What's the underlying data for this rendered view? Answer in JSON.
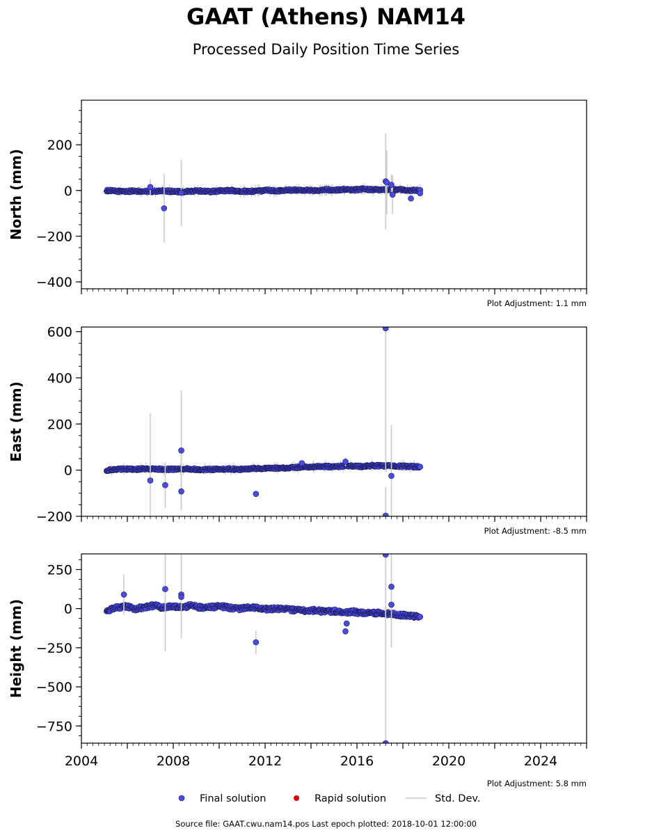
{
  "header": {
    "title": "GAAT (Athens) NAM14",
    "subtitle": "Processed Daily Position Time Series"
  },
  "colors": {
    "final_solution": "#4a4ae6",
    "final_edge": "#1a1a55",
    "rapid_solution": "#e00000",
    "std_dev": "#cccccc"
  },
  "legend": {
    "final": "Final solution",
    "rapid": "Rapid solution",
    "std": "Std. Dev."
  },
  "footer": {
    "source": "Source file: GAAT.cwu.nam14.pos  Last epoch plotted: 2018-10-01 12:00:00"
  },
  "chart_data": [
    {
      "type": "scatter",
      "panel": "north",
      "ylabel": "North (mm)",
      "ylim": [
        -430,
        395
      ],
      "yticks": [
        200,
        0,
        -200,
        -400
      ],
      "ytick_labels": [
        "200",
        "0",
        "−200",
        "−400"
      ],
      "xlim": [
        2004.0,
        2026.0
      ],
      "plot_adjustment": "Plot Adjustment: 1.1 mm",
      "series": [
        {
          "x_start": 2005.1,
          "x_end": 2018.75,
          "values": [
            0,
            -3,
            -4,
            -2,
            -5,
            -3,
            -1,
            -4,
            -6,
            -3,
            -2,
            -5,
            -1,
            0,
            -3,
            -4,
            -2,
            1,
            -1,
            2,
            3,
            1,
            0,
            4,
            2,
            5,
            3,
            6,
            4,
            2,
            5,
            3,
            1,
            0
          ]
        }
      ],
      "outliers": [
        {
          "x": 2007.6,
          "y": -78,
          "err": 150
        },
        {
          "x": 2008.35,
          "y": -10,
          "err": 145
        },
        {
          "x": 2007.0,
          "y": 15,
          "err": 35
        },
        {
          "x": 2017.25,
          "y": 40,
          "err": 210
        },
        {
          "x": 2017.3,
          "y": 35,
          "err": 140
        },
        {
          "x": 2017.5,
          "y": 25,
          "err": 45
        },
        {
          "x": 2017.55,
          "y": -18,
          "err": 85
        },
        {
          "x": 2018.35,
          "y": -35,
          "err": 0
        },
        {
          "x": 2018.75,
          "y": -12,
          "err": 0
        }
      ]
    },
    {
      "type": "scatter",
      "panel": "east",
      "ylabel": "East (mm)",
      "ylim": [
        -200,
        620
      ],
      "yticks": [
        600,
        400,
        200,
        0,
        -200
      ],
      "ytick_labels": [
        "600",
        "400",
        "200",
        "0",
        "−200"
      ],
      "xlim": [
        2004.0,
        2026.0
      ],
      "plot_adjustment": "Plot Adjustment: -8.5 mm",
      "series": [
        {
          "x_start": 2005.1,
          "x_end": 2018.75,
          "values": [
            0,
            3,
            5,
            4,
            6,
            5,
            3,
            4,
            6,
            5,
            2,
            3,
            4,
            5,
            3,
            6,
            8,
            7,
            9,
            10,
            12,
            13,
            15,
            16,
            15,
            18,
            17,
            16,
            20,
            19,
            18,
            17,
            16,
            14
          ]
        }
      ],
      "outliers": [
        {
          "x": 2007.0,
          "y": -45,
          "err": 290
        },
        {
          "x": 2007.65,
          "y": -65,
          "err": 100
        },
        {
          "x": 2008.35,
          "y": 85,
          "err": 260
        },
        {
          "x": 2008.35,
          "y": -92,
          "err": 80
        },
        {
          "x": 2011.6,
          "y": -103,
          "err": 0
        },
        {
          "x": 2013.6,
          "y": 30,
          "err": 0
        },
        {
          "x": 2015.5,
          "y": 37,
          "err": 20
        },
        {
          "x": 2017.25,
          "y": 615,
          "err": 620
        },
        {
          "x": 2017.25,
          "y": -197,
          "err": 125
        },
        {
          "x": 2017.5,
          "y": -25,
          "err": 220
        }
      ]
    },
    {
      "type": "scatter",
      "panel": "height",
      "ylabel": "Height (mm)",
      "ylim": [
        -860,
        350
      ],
      "yticks": [
        250,
        0,
        -250,
        -500,
        -750
      ],
      "ytick_labels": [
        "250",
        "0",
        "−250",
        "−500",
        "−750"
      ],
      "xlim": [
        2004.0,
        2026.0
      ],
      "xticks": [
        2004,
        2008,
        2012,
        2016,
        2020,
        2024
      ],
      "xtick_labels": [
        "2004",
        "2008",
        "2012",
        "2016",
        "2020",
        "2024"
      ],
      "plot_adjustment": "Plot Adjustment: 5.8 mm",
      "series": [
        {
          "x_start": 2005.1,
          "x_end": 2018.75,
          "values": [
            -10,
            5,
            15,
            0,
            10,
            20,
            5,
            15,
            10,
            20,
            5,
            10,
            15,
            5,
            0,
            10,
            5,
            -5,
            0,
            -5,
            -10,
            -15,
            -10,
            -20,
            -15,
            -25,
            -20,
            -30,
            -25,
            -30,
            -35,
            -40,
            -45,
            -55
          ]
        }
      ],
      "outliers": [
        {
          "x": 2005.85,
          "y": 90,
          "err": 130
        },
        {
          "x": 2007.65,
          "y": 125,
          "err": 400
        },
        {
          "x": 2008.35,
          "y": 90,
          "err": 280
        },
        {
          "x": 2008.35,
          "y": 75,
          "err": 0
        },
        {
          "x": 2011.6,
          "y": -215,
          "err": 75
        },
        {
          "x": 2015.5,
          "y": -145,
          "err": 0
        },
        {
          "x": 2015.55,
          "y": -95,
          "err": 0
        },
        {
          "x": 2017.25,
          "y": 345,
          "err": 1200
        },
        {
          "x": 2017.25,
          "y": -860,
          "err": 0
        },
        {
          "x": 2017.5,
          "y": 140,
          "err": 390
        },
        {
          "x": 2017.5,
          "y": 25,
          "err": 0
        }
      ]
    }
  ]
}
